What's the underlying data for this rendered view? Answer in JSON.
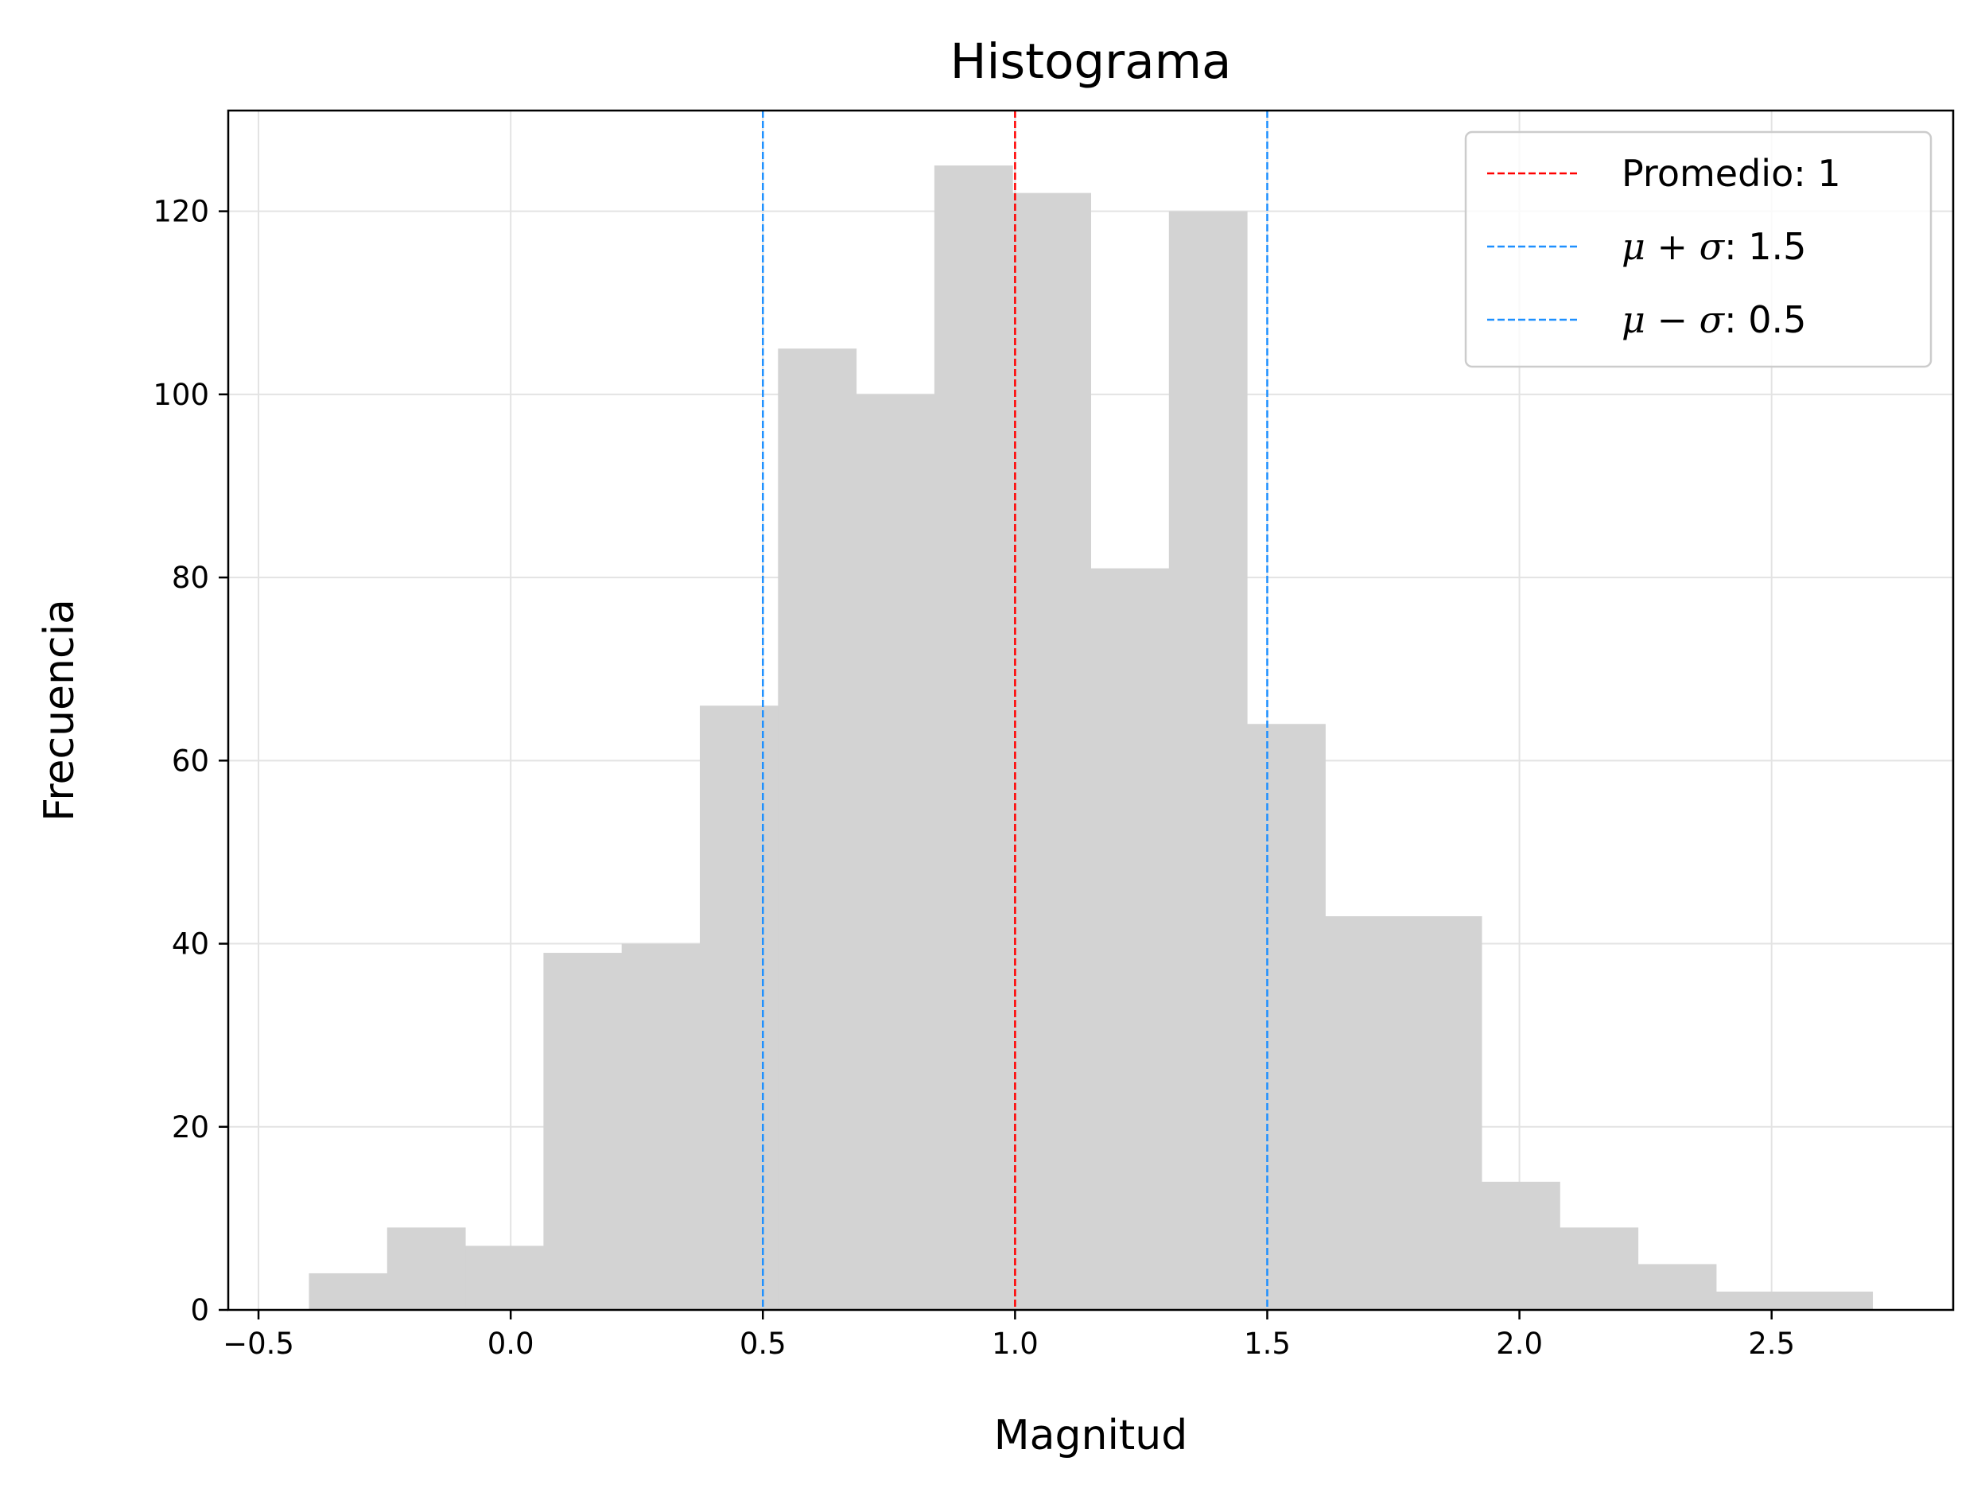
{
  "chart_data": {
    "type": "bar",
    "title": "Histograma",
    "xlabel": "Magnitud",
    "ylabel": "Frecuencia",
    "xlim": [
      -0.56,
      2.86
    ],
    "ylim": [
      0,
      131
    ],
    "grid": true,
    "legend_position": "top-right",
    "bar_color": "#d3d3d3",
    "bins": [
      {
        "x0": -0.4,
        "x1": -0.245,
        "count": 4
      },
      {
        "x0": -0.245,
        "x1": -0.09,
        "count": 9
      },
      {
        "x0": -0.09,
        "x1": 0.065,
        "count": 7
      },
      {
        "x0": 0.065,
        "x1": 0.22,
        "count": 39
      },
      {
        "x0": 0.22,
        "x1": 0.375,
        "count": 40
      },
      {
        "x0": 0.375,
        "x1": 0.53,
        "count": 66
      },
      {
        "x0": 0.53,
        "x1": 0.685,
        "count": 105
      },
      {
        "x0": 0.685,
        "x1": 0.84,
        "count": 100
      },
      {
        "x0": 0.84,
        "x1": 0.995,
        "count": 125
      },
      {
        "x0": 0.995,
        "x1": 1.15,
        "count": 122
      },
      {
        "x0": 1.15,
        "x1": 1.305,
        "count": 81
      },
      {
        "x0": 1.305,
        "x1": 1.46,
        "count": 120
      },
      {
        "x0": 1.46,
        "x1": 1.615,
        "count": 64
      },
      {
        "x0": 1.615,
        "x1": 1.77,
        "count": 43
      },
      {
        "x0": 1.77,
        "x1": 1.925,
        "count": 43
      },
      {
        "x0": 1.925,
        "x1": 2.08,
        "count": 14
      },
      {
        "x0": 2.08,
        "x1": 2.235,
        "count": 9
      },
      {
        "x0": 2.235,
        "x1": 2.39,
        "count": 5
      },
      {
        "x0": 2.39,
        "x1": 2.545,
        "count": 2
      },
      {
        "x0": 2.545,
        "x1": 2.7,
        "count": 2
      }
    ],
    "xticks": [
      -0.5,
      0.0,
      0.5,
      1.0,
      1.5,
      2.0,
      2.5
    ],
    "xtick_labels": [
      "−0.5",
      "0.0",
      "0.5",
      "1.0",
      "1.5",
      "2.0",
      "2.5"
    ],
    "yticks": [
      0,
      20,
      40,
      60,
      80,
      100,
      120
    ],
    "ytick_labels": [
      "0",
      "20",
      "40",
      "60",
      "80",
      "100",
      "120"
    ],
    "vlines": [
      {
        "x": 1.0,
        "color": "#ff0000",
        "legend_prefix": "Promedio: ",
        "legend_value": "1",
        "math": false
      },
      {
        "x": 1.5,
        "color": "#1e90ff",
        "legend_prefix": "μ + σ",
        "legend_value": ": 1.5",
        "math": true
      },
      {
        "x": 0.5,
        "color": "#1e90ff",
        "legend_prefix": "μ − σ",
        "legend_value": ": 0.5",
        "math": true
      }
    ]
  }
}
